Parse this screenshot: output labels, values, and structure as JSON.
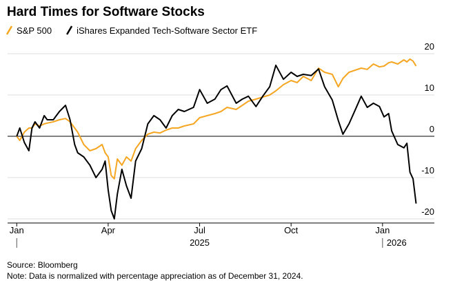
{
  "chart_data": {
    "type": "line",
    "title": "Hard Times for Software Stocks",
    "source": "Source: Bloomberg",
    "note": "Note: Data is normalized with percentage appreciation as of December 31, 2024.",
    "x": [
      0,
      0.1,
      0.25,
      0.4,
      0.5,
      0.6,
      0.75,
      0.9,
      1.0,
      1.2,
      1.4,
      1.6,
      1.75,
      1.9,
      2.0,
      2.2,
      2.4,
      2.6,
      2.8,
      2.9,
      3.0,
      3.1,
      3.2,
      3.3,
      3.45,
      3.6,
      3.75,
      3.9,
      4.1,
      4.3,
      4.5,
      4.7,
      4.9,
      5.1,
      5.3,
      5.5,
      5.8,
      6.0,
      6.25,
      6.5,
      6.7,
      6.9,
      7.2,
      7.4,
      7.6,
      7.85,
      8.07,
      8.3,
      8.5,
      8.75,
      9.0,
      9.2,
      9.4,
      9.66,
      9.9,
      10.1,
      10.35,
      10.55,
      10.7,
      10.9,
      11.1,
      11.3,
      11.5,
      11.7,
      11.9,
      12.05,
      12.2,
      12.3,
      12.5,
      12.7,
      12.8,
      12.9,
      13.0,
      13.1
    ],
    "series": [
      {
        "name": "S&P 500",
        "color": "#f5a623",
        "values": [
          0,
          -1,
          1,
          2,
          2,
          3,
          2.5,
          3,
          3.2,
          3.5,
          4,
          4.3,
          3.5,
          2,
          1,
          -2,
          -3.5,
          -3,
          -2,
          -4,
          -5,
          -9.5,
          -10.3,
          -5.5,
          -7,
          -5,
          -6,
          -3,
          -1,
          0.5,
          1,
          0.8,
          1.5,
          2,
          2,
          2.5,
          3,
          4.5,
          5,
          5.5,
          6,
          7,
          6.5,
          7.5,
          8.5,
          9,
          9.5,
          10,
          11,
          12.5,
          13.5,
          13,
          14.5,
          13.5,
          16.5,
          15.5,
          15,
          12,
          14,
          15.5,
          16,
          16.5,
          16.2,
          17.5,
          16.8,
          17,
          17.8,
          18,
          17.5,
          18.5,
          18,
          18.7,
          18.2,
          17
        ]
      },
      {
        "name": "iShares Expanded Tech-Software Sector ETF",
        "color": "#000000",
        "values": [
          0,
          2,
          -1.5,
          -3.5,
          2,
          3.5,
          2,
          5,
          4,
          4,
          6,
          7.5,
          4,
          -2,
          -4,
          -5,
          -7,
          -10,
          -8,
          -6,
          -13,
          -18,
          -20,
          -14,
          -8,
          -12,
          -15,
          -6,
          -3,
          3,
          5,
          4,
          2,
          5,
          6.5,
          6,
          7,
          11.3,
          8,
          9,
          11.3,
          12.2,
          8,
          9,
          9.7,
          7.2,
          9.7,
          12,
          17.2,
          13.8,
          15.5,
          14.5,
          15,
          14.7,
          16.3,
          12,
          8.8,
          3.8,
          0.5,
          3,
          6.3,
          9.7,
          7,
          8,
          7.2,
          4.7,
          5.5,
          1.3,
          -2,
          -2.8,
          -1.7,
          -8.7,
          -10.3,
          -16.3
        ]
      }
    ],
    "xlim": [
      -0.3,
      13.7
    ],
    "xticks": [
      {
        "value": 0,
        "label": "Jan"
      },
      {
        "value": 3,
        "label": "Apr"
      },
      {
        "value": 6,
        "label": "Jul"
      },
      {
        "value": 9,
        "label": "Oct"
      },
      {
        "value": 12,
        "label": "Jan"
      }
    ],
    "year_ticks": [
      {
        "value": 6,
        "label": "2025"
      },
      {
        "value": 12,
        "label": "2026"
      }
    ],
    "ylim": [
      -21,
      21
    ],
    "yticks": [
      -20,
      -10,
      0,
      10,
      20
    ],
    "grid": true
  }
}
